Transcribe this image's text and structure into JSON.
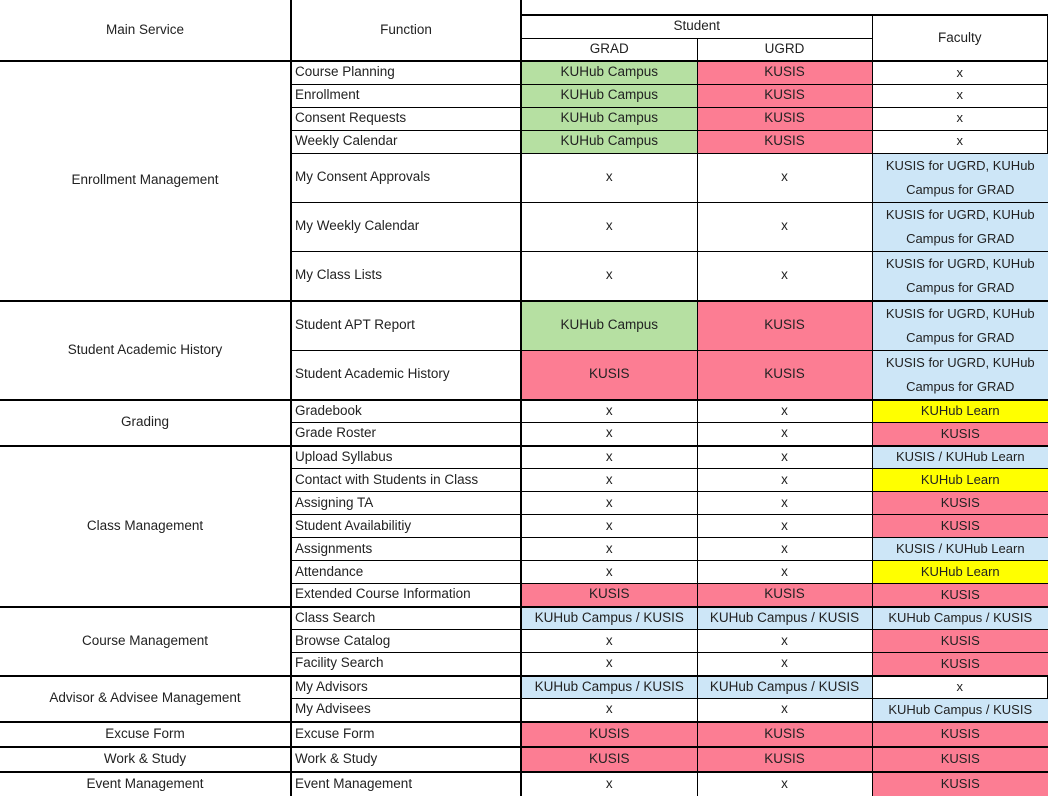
{
  "palette": {
    "green": "#B6E0A2",
    "pink": "#FC7D93",
    "blue": "#CDE6F7",
    "yellow": "#FFFF00",
    "white": "#FFFFFF"
  },
  "table": {
    "headers": {
      "main_service": "Main Service",
      "function": "Function",
      "student": "Student",
      "grad": "GRAD",
      "ugrd": "UGRD",
      "faculty": "Faculty"
    },
    "groups": [
      {
        "name": "Enrollment Management",
        "rows": [
          {
            "function": "Course Planning",
            "grad": {
              "text": "KUHub Campus",
              "color": "green"
            },
            "ugrd": {
              "text": "KUSIS",
              "color": "pink"
            },
            "faculty": {
              "text": "x",
              "color": "white"
            },
            "tall": false
          },
          {
            "function": "Enrollment",
            "grad": {
              "text": "KUHub Campus",
              "color": "green"
            },
            "ugrd": {
              "text": "KUSIS",
              "color": "pink"
            },
            "faculty": {
              "text": "x",
              "color": "white"
            },
            "tall": false
          },
          {
            "function": "Consent Requests",
            "grad": {
              "text": "KUHub Campus",
              "color": "green"
            },
            "ugrd": {
              "text": "KUSIS",
              "color": "pink"
            },
            "faculty": {
              "text": "x",
              "color": "white"
            },
            "tall": false
          },
          {
            "function": "Weekly Calendar",
            "grad": {
              "text": "KUHub Campus",
              "color": "green"
            },
            "ugrd": {
              "text": "KUSIS",
              "color": "pink"
            },
            "faculty": {
              "text": "x",
              "color": "white"
            },
            "tall": false
          },
          {
            "function": "My Consent Approvals",
            "grad": {
              "text": "x",
              "color": "white"
            },
            "ugrd": {
              "text": "x",
              "color": "white"
            },
            "faculty": {
              "text": "KUSIS for UGRD, KUHub Campus for GRAD",
              "color": "blue"
            },
            "tall": true
          },
          {
            "function": "My Weekly Calendar",
            "grad": {
              "text": "x",
              "color": "white"
            },
            "ugrd": {
              "text": "x",
              "color": "white"
            },
            "faculty": {
              "text": "KUSIS for UGRD, KUHub Campus for GRAD",
              "color": "blue"
            },
            "tall": true
          },
          {
            "function": "My Class Lists",
            "grad": {
              "text": "x",
              "color": "white"
            },
            "ugrd": {
              "text": "x",
              "color": "white"
            },
            "faculty": {
              "text": "KUSIS for UGRD, KUHub Campus for GRAD",
              "color": "blue"
            },
            "tall": true
          }
        ]
      },
      {
        "name": "Student Academic History",
        "rows": [
          {
            "function": "Student APT Report",
            "grad": {
              "text": "KUHub Campus",
              "color": "green"
            },
            "ugrd": {
              "text": "KUSIS",
              "color": "pink"
            },
            "faculty": {
              "text": "KUSIS for UGRD, KUHub Campus for GRAD",
              "color": "blue"
            },
            "tall": true
          },
          {
            "function": "Student Academic History",
            "grad": {
              "text": "KUSIS",
              "color": "pink"
            },
            "ugrd": {
              "text": "KUSIS",
              "color": "pink"
            },
            "faculty": {
              "text": "KUSIS for UGRD, KUHub Campus for GRAD",
              "color": "blue"
            },
            "tall": true
          }
        ]
      },
      {
        "name": "Grading",
        "rows": [
          {
            "function": "Gradebook",
            "grad": {
              "text": "x",
              "color": "white"
            },
            "ugrd": {
              "text": "x",
              "color": "white"
            },
            "faculty": {
              "text": "KUHub Learn",
              "color": "yellow"
            },
            "tall": false
          },
          {
            "function": "Grade Roster",
            "grad": {
              "text": "x",
              "color": "white"
            },
            "ugrd": {
              "text": "x",
              "color": "white"
            },
            "faculty": {
              "text": "KUSIS",
              "color": "pink"
            },
            "tall": false
          }
        ]
      },
      {
        "name": "Class Management",
        "rows": [
          {
            "function": "Upload Syllabus",
            "grad": {
              "text": "x",
              "color": "white"
            },
            "ugrd": {
              "text": "x",
              "color": "white"
            },
            "faculty": {
              "text": "KUSIS / KUHub Learn",
              "color": "blue"
            },
            "tall": false
          },
          {
            "function": "Contact with Students in Class",
            "grad": {
              "text": "x",
              "color": "white"
            },
            "ugrd": {
              "text": "x",
              "color": "white"
            },
            "faculty": {
              "text": "KUHub Learn",
              "color": "yellow"
            },
            "tall": false
          },
          {
            "function": "Assigning TA",
            "grad": {
              "text": "x",
              "color": "white"
            },
            "ugrd": {
              "text": "x",
              "color": "white"
            },
            "faculty": {
              "text": "KUSIS",
              "color": "pink"
            },
            "tall": false
          },
          {
            "function": "Student Availabilitiy",
            "grad": {
              "text": "x",
              "color": "white"
            },
            "ugrd": {
              "text": "x",
              "color": "white"
            },
            "faculty": {
              "text": "KUSIS",
              "color": "pink"
            },
            "tall": false
          },
          {
            "function": "Assignments",
            "grad": {
              "text": "x",
              "color": "white"
            },
            "ugrd": {
              "text": "x",
              "color": "white"
            },
            "faculty": {
              "text": "KUSIS / KUHub Learn",
              "color": "blue"
            },
            "tall": false
          },
          {
            "function": "Attendance",
            "grad": {
              "text": "x",
              "color": "white"
            },
            "ugrd": {
              "text": "x",
              "color": "white"
            },
            "faculty": {
              "text": "KUHub Learn",
              "color": "yellow"
            },
            "tall": false
          },
          {
            "function": "Extended Course Information",
            "grad": {
              "text": "KUSIS",
              "color": "pink"
            },
            "ugrd": {
              "text": "KUSIS",
              "color": "pink"
            },
            "faculty": {
              "text": "KUSIS",
              "color": "pink"
            },
            "tall": false
          }
        ]
      },
      {
        "name": "Course Management",
        "rows": [
          {
            "function": "Class Search",
            "grad": {
              "text": "KUHub Campus / KUSIS",
              "color": "blue"
            },
            "ugrd": {
              "text": "KUHub Campus / KUSIS",
              "color": "blue"
            },
            "faculty": {
              "text": "KUHub Campus / KUSIS",
              "color": "blue"
            },
            "tall": false
          },
          {
            "function": "Browse Catalog",
            "grad": {
              "text": "x",
              "color": "white"
            },
            "ugrd": {
              "text": "x",
              "color": "white"
            },
            "faculty": {
              "text": "KUSIS",
              "color": "pink"
            },
            "tall": false
          },
          {
            "function": "Facility Search",
            "grad": {
              "text": "x",
              "color": "white"
            },
            "ugrd": {
              "text": "x",
              "color": "white"
            },
            "faculty": {
              "text": "KUSIS",
              "color": "pink"
            },
            "tall": false
          }
        ]
      },
      {
        "name": "Advisor & Advisee Management",
        "rows": [
          {
            "function": "My Advisors",
            "grad": {
              "text": "KUHub Campus / KUSIS",
              "color": "blue"
            },
            "ugrd": {
              "text": "KUHub Campus / KUSIS",
              "color": "blue"
            },
            "faculty": {
              "text": "x",
              "color": "white"
            },
            "tall": false
          },
          {
            "function": "My Advisees",
            "grad": {
              "text": "x",
              "color": "white"
            },
            "ugrd": {
              "text": "x",
              "color": "white"
            },
            "faculty": {
              "text": "KUHub Campus / KUSIS",
              "color": "blue"
            },
            "tall": false
          }
        ]
      },
      {
        "name": "Excuse Form",
        "rows": [
          {
            "function": "Excuse Form",
            "grad": {
              "text": "KUSIS",
              "color": "pink"
            },
            "ugrd": {
              "text": "KUSIS",
              "color": "pink"
            },
            "faculty": {
              "text": "KUSIS",
              "color": "pink"
            },
            "tall": false
          }
        ]
      },
      {
        "name": "Work & Study",
        "rows": [
          {
            "function": "Work & Study",
            "grad": {
              "text": "KUSIS",
              "color": "pink"
            },
            "ugrd": {
              "text": "KUSIS",
              "color": "pink"
            },
            "faculty": {
              "text": "KUSIS",
              "color": "pink"
            },
            "tall": false
          }
        ]
      },
      {
        "name": "Event Management",
        "rows": [
          {
            "function": "Event Management",
            "grad": {
              "text": "x",
              "color": "white"
            },
            "ugrd": {
              "text": "x",
              "color": "white"
            },
            "faculty": {
              "text": "KUSIS",
              "color": "pink"
            },
            "tall": false
          }
        ]
      }
    ]
  }
}
